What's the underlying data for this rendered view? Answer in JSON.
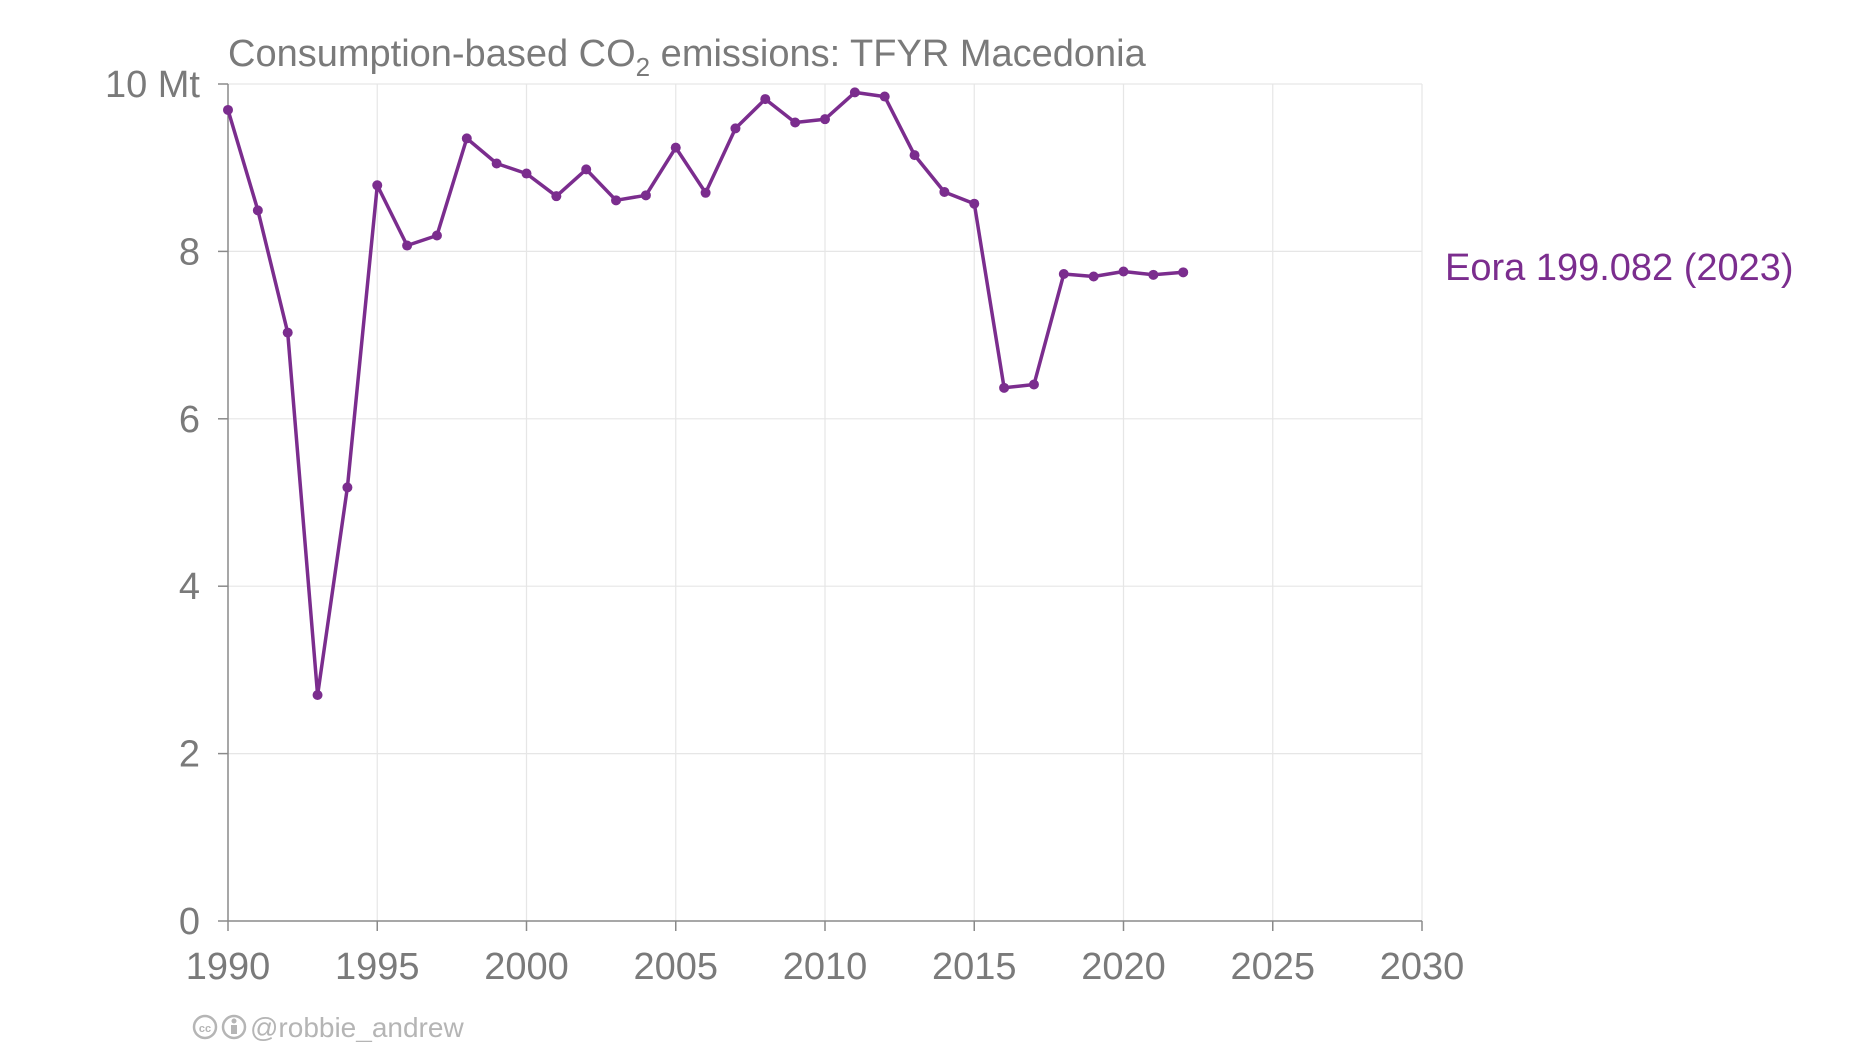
{
  "chart_data": {
    "type": "line",
    "title_main": "Consumption-based CO",
    "title_sub": "2",
    "title_rest": " emissions: TFYR Macedonia",
    "y_unit": "Mt",
    "xlim": [
      1990,
      2030
    ],
    "ylim": [
      0,
      10
    ],
    "x_ticks": [
      1990,
      1995,
      2000,
      2005,
      2010,
      2015,
      2020,
      2025,
      2030
    ],
    "y_ticks": [
      0,
      2,
      4,
      6,
      8,
      10
    ],
    "y_tick_labels": [
      "0",
      "2",
      "4",
      "6",
      "8",
      "10 Mt"
    ],
    "grid": true,
    "series": [
      {
        "name": "Eora 199.082 (2023)",
        "color": "#7b2d8e",
        "x": [
          1990,
          1991,
          1992,
          1993,
          1994,
          1995,
          1996,
          1997,
          1998,
          1999,
          2000,
          2001,
          2002,
          2003,
          2004,
          2005,
          2006,
          2007,
          2008,
          2009,
          2010,
          2011,
          2012,
          2013,
          2014,
          2015,
          2016,
          2017,
          2018,
          2019,
          2020,
          2021,
          2022
        ],
        "y": [
          9.69,
          8.49,
          7.03,
          2.7,
          5.18,
          8.79,
          8.07,
          8.19,
          9.35,
          9.05,
          8.93,
          8.66,
          8.98,
          8.61,
          8.67,
          9.24,
          8.7,
          9.47,
          9.82,
          9.54,
          9.58,
          9.9,
          9.85,
          9.15,
          8.71,
          8.57,
          6.37,
          6.41,
          7.73,
          7.7,
          7.76,
          7.72,
          7.75
        ]
      }
    ]
  },
  "credit": {
    "icons": [
      "cc-icon",
      "by-icon"
    ],
    "handle": "@robbie_andrew"
  }
}
